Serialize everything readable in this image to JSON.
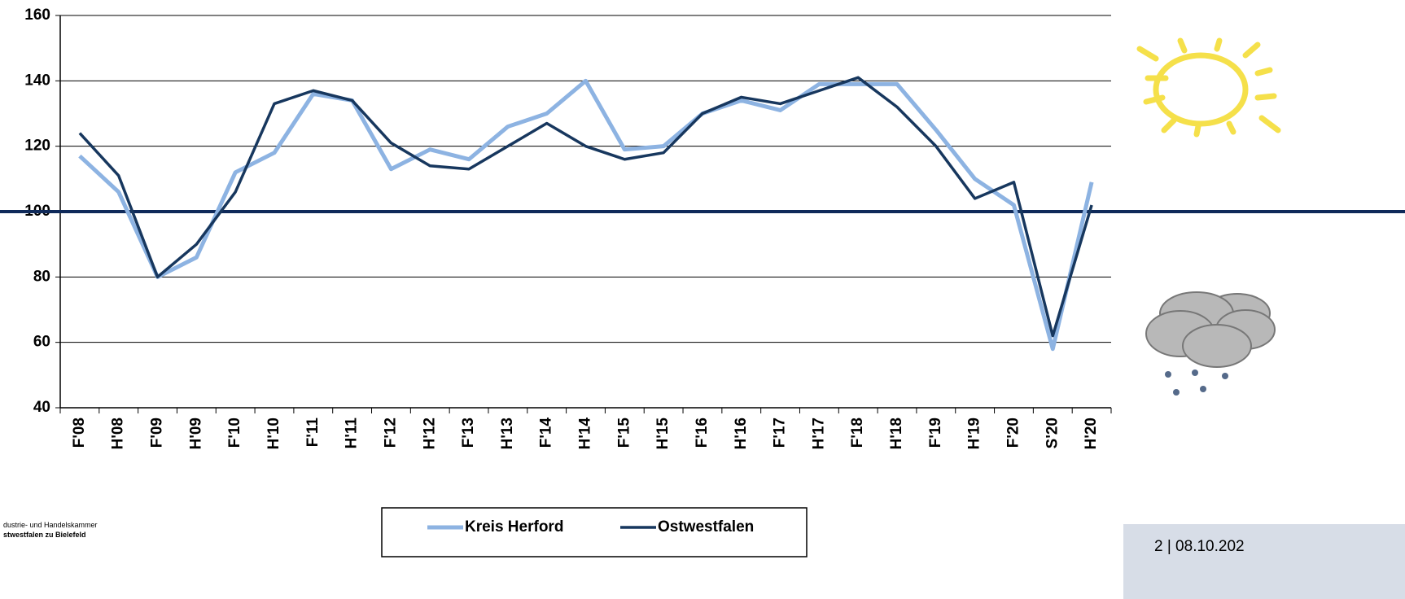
{
  "chart_data": {
    "type": "line",
    "categories": [
      "F'08",
      "H'08",
      "F'09",
      "H'09",
      "F'10",
      "H'10",
      "F'11",
      "H'11",
      "F'12",
      "H'12",
      "F'13",
      "H'13",
      "F'14",
      "H'14",
      "F'15",
      "H'15",
      "F'16",
      "H'16",
      "F'17",
      "H'17",
      "F'18",
      "H'18",
      "F'19",
      "H'19",
      "F'20",
      "S'20",
      "H'20"
    ],
    "series": [
      {
        "name": "Kreis Herford",
        "color": "#8db3e2",
        "values": [
          117,
          106,
          80,
          86,
          112,
          118,
          136,
          134,
          113,
          119,
          116,
          126,
          130,
          140,
          119,
          120,
          130,
          134,
          131,
          139,
          139,
          139,
          125,
          110,
          102,
          58,
          109
        ]
      },
      {
        "name": "Ostwestfalen",
        "color": "#17375e",
        "values": [
          124,
          111,
          80,
          90,
          106,
          133,
          137,
          134,
          121,
          114,
          113,
          120,
          127,
          120,
          116,
          118,
          130,
          135,
          133,
          137,
          141,
          132,
          120,
          104,
          109,
          62,
          102
        ]
      }
    ],
    "ylim": [
      40,
      160
    ],
    "yticks": [
      40,
      60,
      80,
      100,
      120,
      140,
      160
    ],
    "grid": true,
    "reference_line": 100,
    "reference_color": "#0f2a5a",
    "legend": "bottom"
  },
  "footer": {
    "logo_line1": "dustrie- und Handelskammer",
    "logo_line2": "stwestfalen zu Bielefeld",
    "page": "2 | 08.10.202"
  }
}
